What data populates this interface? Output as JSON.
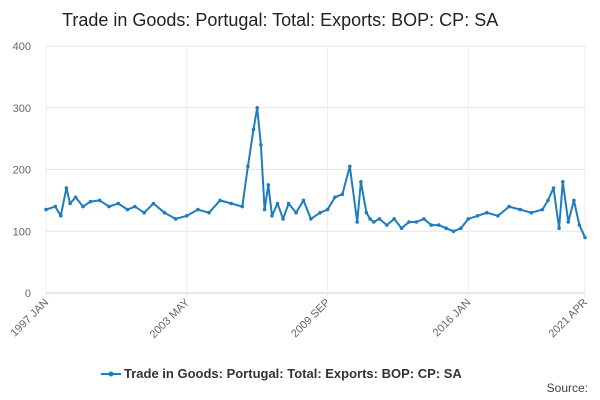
{
  "chart_data": {
    "type": "line",
    "title": "Trade in Goods: Portugal: Total: Exports: BOP: CP: SA",
    "xlabel": "",
    "ylabel": "",
    "ylim": [
      0,
      400
    ],
    "yticks": [
      "0",
      "100",
      "200",
      "300",
      "400"
    ],
    "xticks": [
      "1997 JAN",
      "2003 MAY",
      "2009 SEP",
      "2016 JAN",
      "2021 APR"
    ],
    "grid": true,
    "legend": "bottom",
    "source": "Source:",
    "series": [
      {
        "name": "Trade in Goods: Portugal: Total: Exports: BOP: CP: SA",
        "color": "#1f7dbd",
        "x": [
          "1997-01",
          "1997-06",
          "1997-09",
          "1997-12",
          "1998-02",
          "1998-05",
          "1998-09",
          "1999-01",
          "1999-06",
          "1999-11",
          "2000-04",
          "2000-09",
          "2001-01",
          "2001-06",
          "2001-11",
          "2002-05",
          "2002-11",
          "2003-05",
          "2003-11",
          "2004-05",
          "2004-11",
          "2005-05",
          "2005-11",
          "2006-02",
          "2006-05",
          "2006-07",
          "2006-09",
          "2006-11",
          "2007-01",
          "2007-03",
          "2007-06",
          "2007-09",
          "2007-12",
          "2008-04",
          "2008-08",
          "2008-12",
          "2009-05",
          "2009-09",
          "2010-01",
          "2010-05",
          "2010-09",
          "2011-01",
          "2011-03",
          "2011-06",
          "2011-08",
          "2011-10",
          "2012-01",
          "2012-05",
          "2012-09",
          "2013-01",
          "2013-05",
          "2013-09",
          "2014-01",
          "2014-05",
          "2014-09",
          "2015-01",
          "2015-05",
          "2015-09",
          "2016-01",
          "2016-06",
          "2016-11",
          "2017-05",
          "2017-11",
          "2018-05",
          "2018-11",
          "2019-05",
          "2019-08",
          "2019-11",
          "2020-02",
          "2020-04",
          "2020-07",
          "2020-10",
          "2021-01",
          "2021-04"
        ],
        "values": [
          135,
          140,
          125,
          170,
          145,
          155,
          140,
          148,
          150,
          140,
          145,
          135,
          140,
          130,
          145,
          130,
          120,
          125,
          135,
          130,
          150,
          145,
          140,
          205,
          265,
          300,
          240,
          135,
          175,
          125,
          145,
          120,
          145,
          130,
          150,
          120,
          130,
          135,
          155,
          160,
          205,
          115,
          180,
          130,
          120,
          115,
          120,
          110,
          120,
          105,
          115,
          115,
          120,
          110,
          110,
          105,
          100,
          105,
          120,
          125,
          130,
          125,
          140,
          135,
          130,
          135,
          150,
          170,
          105,
          180,
          115,
          150,
          110,
          90
        ]
      }
    ]
  }
}
